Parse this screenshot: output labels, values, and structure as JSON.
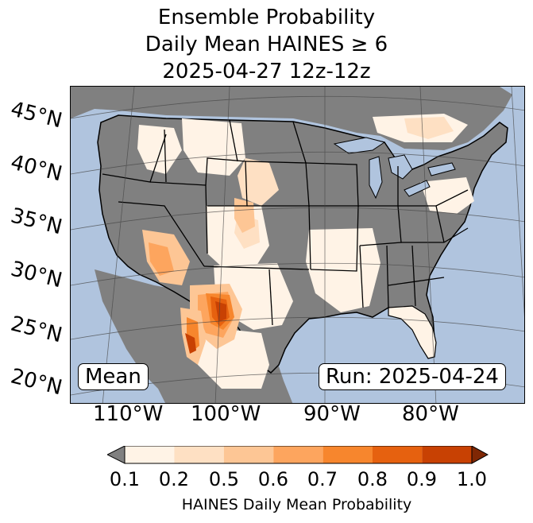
{
  "title": {
    "line1": "Ensemble Probability",
    "line2": "Daily Mean HAINES ≥ 6",
    "line3": "2025-04-27 12z-12z"
  },
  "map": {
    "latitude_labels": [
      "45°N",
      "40°N",
      "35°N",
      "30°N",
      "25°N",
      "20°N"
    ],
    "longitude_labels": [
      "110°W",
      "100°W",
      "90°W",
      "80°W"
    ],
    "mean_label": "Mean",
    "run_label": "Run: 2025-04-24",
    "colors": {
      "ocean": "#b0c4de",
      "below_threshold": "#808080",
      "water_bodies": "#b0c4de",
      "borders": "#000000"
    }
  },
  "colorbar": {
    "label": "HAINES Daily Mean Probability",
    "ticks": [
      "0.1",
      "0.2",
      "0.5",
      "0.6",
      "0.7",
      "0.8",
      "0.9",
      "1.0"
    ],
    "under_color": "#808080",
    "over_color": "#7f2704",
    "bin_colors": [
      "#fff3e6",
      "#fee0c3",
      "#fdc695",
      "#fda55e",
      "#f7862d",
      "#e6610f",
      "#c84103"
    ]
  }
}
